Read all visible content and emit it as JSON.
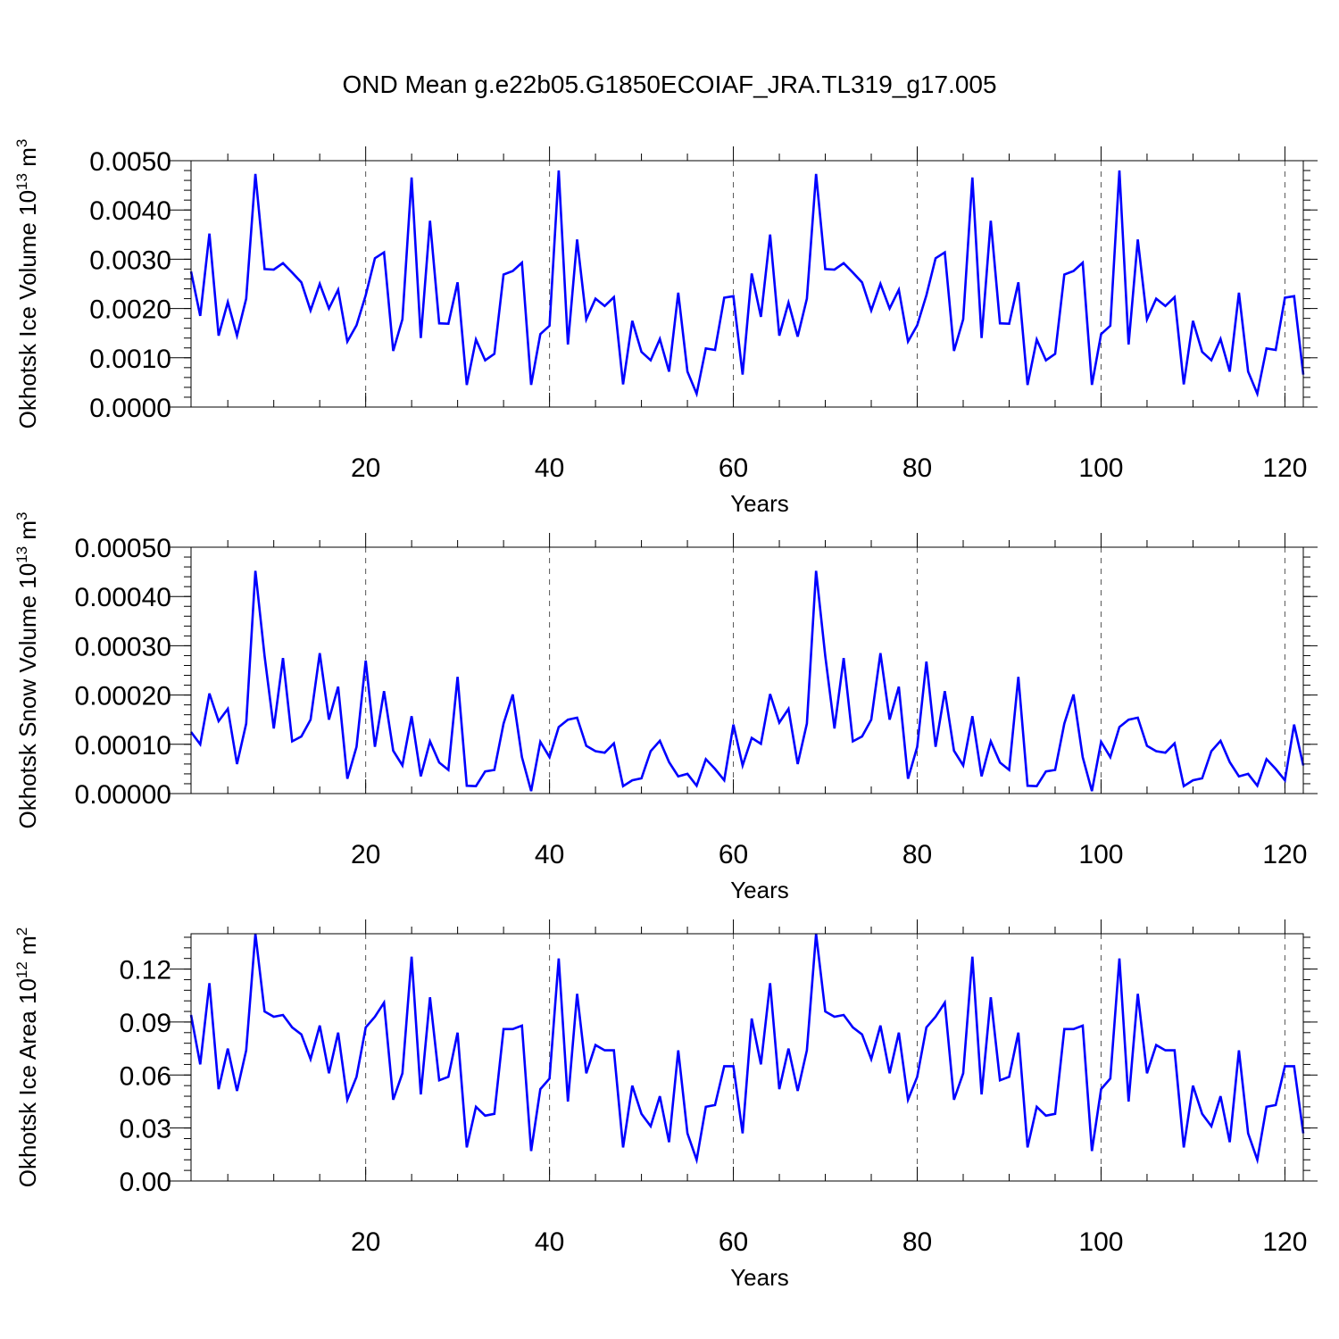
{
  "title": "OND Mean g.e22b05.G1850ECOIAF_JRA.TL319_g17.005",
  "line_color": "#0000ff",
  "chart_data": [
    {
      "type": "line",
      "title": "OND Mean g.e22b05.G1850ECOIAF_JRA.TL319_g17.005",
      "xlabel": "Years",
      "ylabel_main": "Okhotsk Ice Volume 10",
      "ylabel_sup1": "13",
      "ylabel_mid": " m",
      "ylabel_sup2": "3",
      "xlim": [
        1,
        122
      ],
      "ylim": [
        0,
        0.005
      ],
      "xticks": [
        20,
        40,
        60,
        80,
        100,
        120
      ],
      "yticks": [
        0.0,
        0.001,
        0.002,
        0.003,
        0.004,
        0.005
      ],
      "ytick_labels": [
        "0.0000",
        "0.0010",
        "0.0020",
        "0.0030",
        "0.0040",
        "0.0050"
      ],
      "grid_x": "dashed at major x ticks",
      "series": [
        {
          "color": "#0000ff",
          "x_start": 1,
          "values": [
            0.00275,
            0.00185,
            0.00352,
            0.00145,
            0.00213,
            0.00145,
            0.0022,
            0.00473,
            0.0028,
            0.00279,
            0.00292,
            0.00273,
            0.00253,
            0.00196,
            0.0025,
            0.002,
            0.00238,
            0.00133,
            0.00166,
            0.00227,
            0.00302,
            0.00314,
            0.00114,
            0.00178,
            0.00466,
            0.0014,
            0.00378,
            0.0017,
            0.00169,
            0.00253,
            0.00045,
            0.00137,
            0.00095,
            0.00108,
            0.00269,
            0.00276,
            0.00293,
            0.00045,
            0.00148,
            0.00165,
            0.0048,
            0.00127,
            0.0034,
            0.00178,
            0.0022,
            0.00205,
            0.00223,
            0.00046,
            0.00175,
            0.00112,
            0.00095,
            0.00138,
            0.00072,
            0.00232,
            0.00072,
            0.00027,
            0.00119,
            0.00116,
            0.00222,
            0.00225,
            0.00066,
            0.00271,
            0.00183,
            0.0035,
            0.00145,
            0.00212,
            0.00143,
            0.0022,
            0.00473,
            0.0028,
            0.00279,
            0.00292,
            0.00273,
            0.00253,
            0.00196,
            0.0025,
            0.002,
            0.00238,
            0.00133,
            0.00166,
            0.00227,
            0.00302,
            0.00314,
            0.00114,
            0.00178,
            0.00466,
            0.0014,
            0.00378,
            0.0017,
            0.00169,
            0.00253,
            0.00045,
            0.00137,
            0.00095,
            0.00108,
            0.00269,
            0.00276,
            0.00293,
            0.00045,
            0.00148,
            0.00165,
            0.0048,
            0.00127,
            0.0034,
            0.00178,
            0.0022,
            0.00205,
            0.00223,
            0.00046,
            0.00175,
            0.00112,
            0.00095,
            0.00138,
            0.00072,
            0.00232,
            0.00072,
            0.00027,
            0.00119,
            0.00116,
            0.00222,
            0.00225,
            0.00066
          ]
        }
      ]
    },
    {
      "type": "line",
      "xlabel": "Years",
      "ylabel_main": "Okhotsk Snow Volume 10",
      "ylabel_sup1": "13",
      "ylabel_mid": " m",
      "ylabel_sup2": "3",
      "xlim": [
        1,
        122
      ],
      "ylim": [
        0,
        0.0005
      ],
      "xticks": [
        20,
        40,
        60,
        80,
        100,
        120
      ],
      "yticks": [
        0.0,
        0.0001,
        0.0002,
        0.0003,
        0.0004,
        0.0005
      ],
      "ytick_labels": [
        "0.00000",
        "0.00010",
        "0.00020",
        "0.00030",
        "0.00040",
        "0.00050"
      ],
      "grid_x": "dashed at major x ticks",
      "series": [
        {
          "color": "#0000ff",
          "x_start": 1,
          "values": [
            0.000125,
            0.0001,
            0.000203,
            0.000147,
            0.000172,
            6e-05,
            0.000142,
            0.000452,
            0.000279,
            0.000132,
            0.000275,
            0.000106,
            0.000116,
            0.00015,
            0.000285,
            0.00015,
            0.000217,
            3e-05,
            9.5e-05,
            0.00027,
            9.5e-05,
            0.000208,
            8.7e-05,
            5.7e-05,
            0.000157,
            3.5e-05,
            0.000106,
            6.3e-05,
            4.8e-05,
            0.000237,
            1.6e-05,
            1.5e-05,
            4.5e-05,
            4.8e-05,
            0.000142,
            0.000201,
            7.4e-05,
            5e-06,
            0.000105,
            7.4e-05,
            0.000135,
            0.00015,
            0.000154,
            9.7e-05,
            8.6e-05,
            8.3e-05,
            0.000102,
            1.5e-05,
            2.7e-05,
            3.1e-05,
            8.6e-05,
            0.000107,
            6.4e-05,
            3.5e-05,
            4e-05,
            1.6e-05,
            7e-05,
            5e-05,
            2.7e-05,
            0.00014,
            5.7e-05,
            0.000113,
            0.000101,
            0.000202,
            0.000144,
            0.000172,
            6e-05,
            0.000142,
            0.000452,
            0.000279,
            0.000132,
            0.000275,
            0.000106,
            0.000116,
            0.00015,
            0.000285,
            0.00015,
            0.000217,
            3e-05,
            9.5e-05,
            0.000268,
            9.5e-05,
            0.000208,
            8.7e-05,
            5.7e-05,
            0.000157,
            3.5e-05,
            0.000106,
            6.3e-05,
            4.8e-05,
            0.000237,
            1.6e-05,
            1.5e-05,
            4.5e-05,
            4.8e-05,
            0.000142,
            0.000201,
            7.4e-05,
            5e-06,
            0.000105,
            7.4e-05,
            0.000135,
            0.00015,
            0.000154,
            9.7e-05,
            8.6e-05,
            8.3e-05,
            0.000102,
            1.5e-05,
            2.7e-05,
            3.1e-05,
            8.6e-05,
            0.000107,
            6.4e-05,
            3.5e-05,
            4e-05,
            1.6e-05,
            7e-05,
            5e-05,
            2.7e-05,
            0.00014,
            5.7e-05
          ]
        }
      ]
    },
    {
      "type": "line",
      "xlabel": "Years",
      "ylabel_main": "Okhotsk Ice Area 10",
      "ylabel_sup1": "12",
      "ylabel_mid": " m",
      "ylabel_sup2": "2",
      "xlim": [
        1,
        122
      ],
      "ylim": [
        0,
        0.14
      ],
      "xticks": [
        20,
        40,
        60,
        80,
        100,
        120
      ],
      "yticks": [
        0.0,
        0.03,
        0.06,
        0.09,
        0.12
      ],
      "ytick_labels": [
        "0.00",
        "0.03",
        "0.06",
        "0.09",
        "0.12"
      ],
      "grid_x": "dashed at major x ticks",
      "series": [
        {
          "color": "#0000ff",
          "x_start": 1,
          "values": [
            0.094,
            0.066,
            0.112,
            0.052,
            0.075,
            0.051,
            0.074,
            0.14,
            0.096,
            0.093,
            0.094,
            0.087,
            0.083,
            0.069,
            0.088,
            0.061,
            0.084,
            0.046,
            0.059,
            0.087,
            0.093,
            0.101,
            0.046,
            0.061,
            0.127,
            0.049,
            0.104,
            0.057,
            0.059,
            0.084,
            0.019,
            0.042,
            0.037,
            0.038,
            0.086,
            0.086,
            0.088,
            0.017,
            0.052,
            0.058,
            0.126,
            0.045,
            0.106,
            0.061,
            0.077,
            0.074,
            0.074,
            0.019,
            0.054,
            0.038,
            0.031,
            0.048,
            0.022,
            0.074,
            0.027,
            0.012,
            0.042,
            0.043,
            0.065,
            0.065,
            0.027,
            0.092,
            0.066,
            0.112,
            0.052,
            0.075,
            0.051,
            0.074,
            0.14,
            0.096,
            0.093,
            0.094,
            0.087,
            0.083,
            0.069,
            0.088,
            0.061,
            0.084,
            0.046,
            0.059,
            0.087,
            0.093,
            0.101,
            0.046,
            0.061,
            0.127,
            0.049,
            0.104,
            0.057,
            0.059,
            0.084,
            0.019,
            0.042,
            0.037,
            0.038,
            0.086,
            0.086,
            0.088,
            0.017,
            0.052,
            0.058,
            0.126,
            0.045,
            0.106,
            0.061,
            0.077,
            0.074,
            0.074,
            0.019,
            0.054,
            0.038,
            0.031,
            0.048,
            0.022,
            0.074,
            0.027,
            0.012,
            0.042,
            0.043,
            0.065,
            0.065,
            0.027
          ]
        }
      ]
    }
  ]
}
